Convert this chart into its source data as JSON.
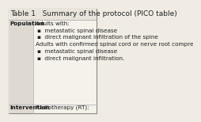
{
  "title": "Table 1   Summary of the protocol (PICO table)",
  "title_fontsize": 6.5,
  "bg_color": "#f0ece4",
  "border_color": "#888880",
  "col1_label_population": "Population",
  "col1_label_intervention": "Intervention",
  "col2_population_intro": "Adults with:",
  "col2_bullets1": [
    "metastatic spinal disease",
    "direct malignant infiltration of the spine"
  ],
  "col2_middle": "Adults with confirmed spinal cord or nerve root compre",
  "col2_bullets2": [
    "metastatic spinal disease",
    "direct malignant infiltration."
  ],
  "col2_intervention": "Radiotherapy (RT):",
  "row_label_fontsize": 5.2,
  "body_fontsize": 5.2,
  "header_bg": "#e8e4dc",
  "divider_color": "#aaaaaa",
  "col1_bg": "#dedad2",
  "col2_bg": "#f5f2ec"
}
